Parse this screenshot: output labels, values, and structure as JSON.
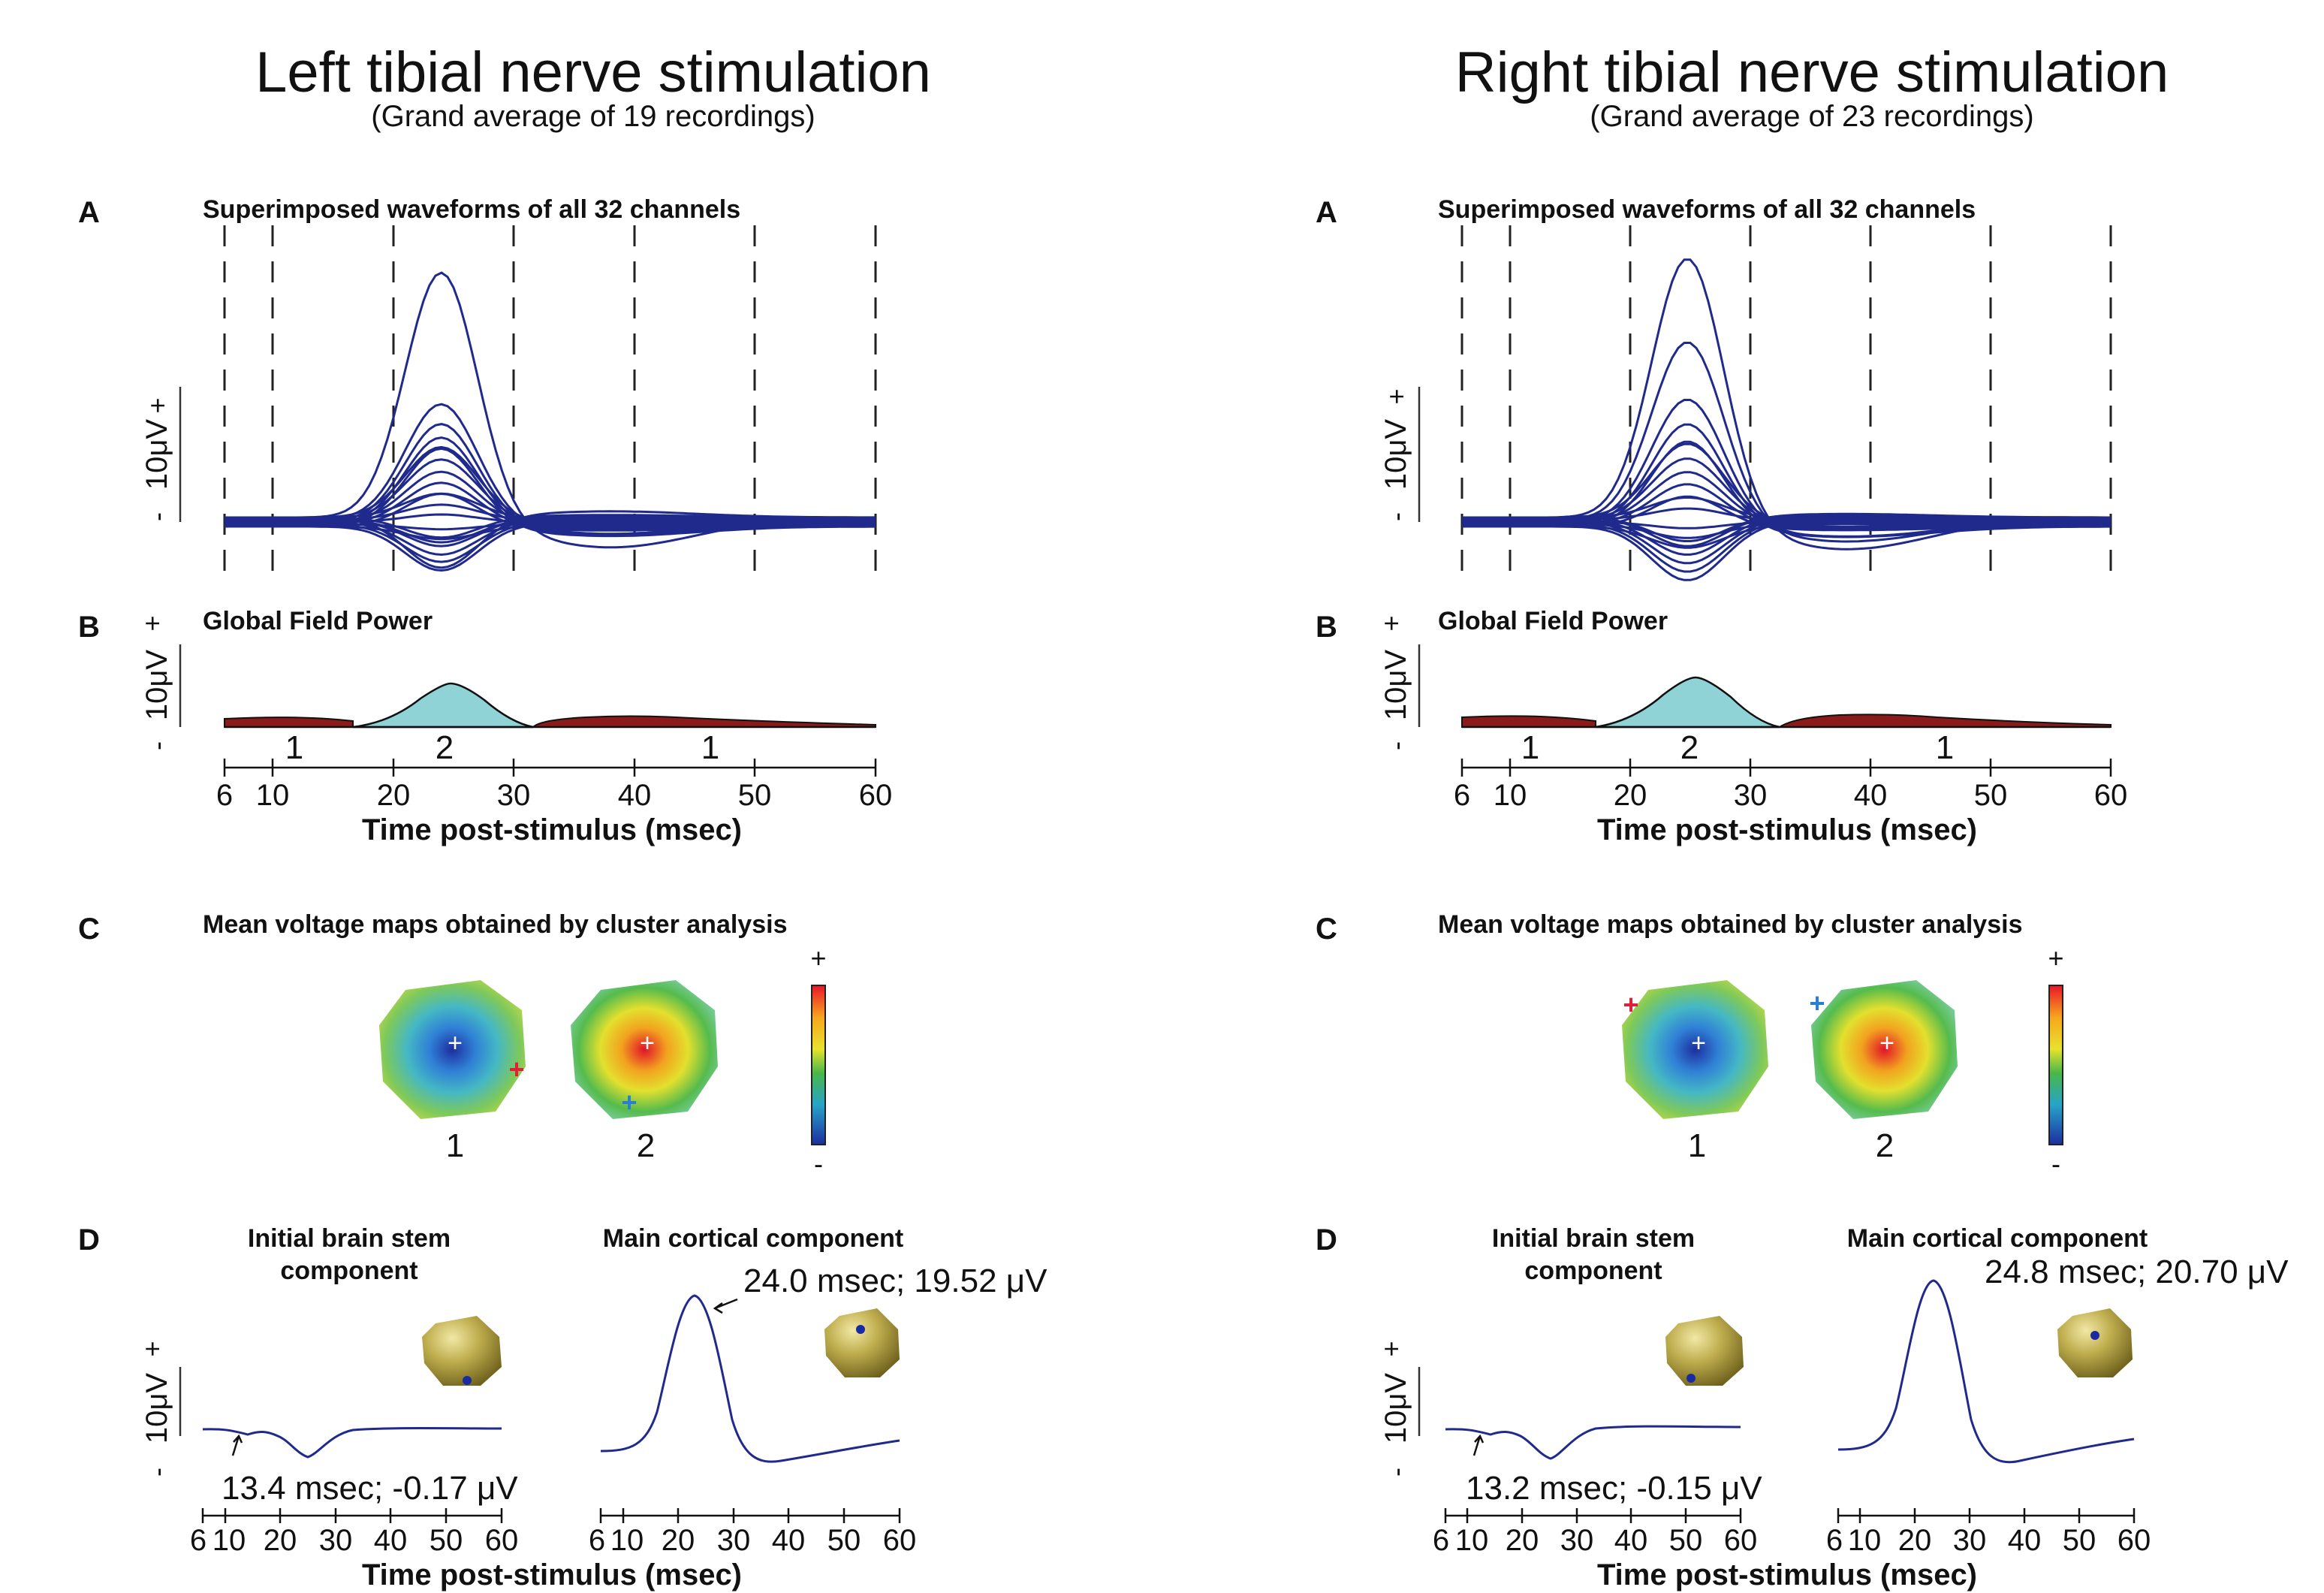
{
  "figure": {
    "panels": [
      {
        "title": "Left tibial nerve stimulation",
        "subtitle": "(Grand average of 19 recordings)",
        "letters": [
          "A",
          "B",
          "C",
          "D"
        ],
        "a_heading": "Superimposed waveforms of all 32 channels",
        "b_heading": "Global Field Power",
        "c_heading": "Mean voltage maps obtained by cluster analysis",
        "d_heading_left": [
          "Initial brain stem",
          "component"
        ],
        "d_heading_right": "Main cortical component",
        "scale_label": "10μV",
        "plus": "+",
        "minus": "-",
        "segments": [
          "1",
          "2",
          "1"
        ],
        "map_labels": [
          "1",
          "2"
        ],
        "colorbar_plus": "+",
        "colorbar_minus": "-",
        "x_ticks": [
          "6",
          "10",
          "20",
          "30",
          "40",
          "50",
          "60"
        ],
        "xlabel": "Time post-stimulus (msec)",
        "brainstem_annotation": "13.4 msec; -0.17 μV",
        "cortical_annotation": "24.0 msec; 19.52 μV"
      },
      {
        "title": "Right tibial nerve stimulation",
        "subtitle": "(Grand average of 23 recordings)",
        "letters": [
          "A",
          "B",
          "C",
          "D"
        ],
        "a_heading": "Superimposed waveforms of all 32 channels",
        "b_heading": "Global Field Power",
        "c_heading": "Mean voltage maps obtained by cluster analysis",
        "d_heading_left": [
          "Initial brain stem",
          "component"
        ],
        "d_heading_right": "Main cortical component",
        "scale_label": "10μV",
        "plus": "+",
        "minus": "-",
        "segments": [
          "1",
          "2",
          "1"
        ],
        "map_labels": [
          "1",
          "2"
        ],
        "colorbar_plus": "+",
        "colorbar_minus": "-",
        "x_ticks": [
          "6",
          "10",
          "20",
          "30",
          "40",
          "50",
          "60"
        ],
        "xlabel": "Time post-stimulus (msec)",
        "brainstem_annotation": "13.2 msec; -0.15 μV",
        "cortical_annotation": "24.8 msec; 20.70 μV"
      }
    ]
  },
  "colors": {
    "waveform": "#1f2a8c",
    "gfp_segment_2": "#8fd3d6",
    "gfp_segment_1": "#8b1a1a",
    "marker_red": "#e0203a",
    "marker_blue": "#2a7fd0",
    "electrode_dot": "#1a2aa0"
  },
  "chart_data": [
    {
      "type": "line",
      "title": "Superimposed waveforms of all 32 channels",
      "xlabel": "Time post-stimulus (msec)",
      "ylabel": "10μV",
      "xlim": [
        6,
        60
      ],
      "cluster_boundaries_ms": [
        6,
        10,
        20,
        30,
        40,
        50,
        60
      ],
      "x": [
        6,
        10,
        13.4,
        17,
        20,
        24,
        28,
        31,
        35,
        40,
        50,
        60
      ],
      "series": [
        {
          "values": [
            0,
            0,
            -0.2,
            0,
            10,
            19.5,
            9,
            0,
            -2,
            -2.5,
            -1.5,
            -0.5
          ]
        },
        {
          "values": [
            0,
            0,
            -0.2,
            0,
            5,
            9.2,
            4.5,
            0,
            -1,
            -0.6,
            -0.3,
            0
          ]
        },
        {
          "values": [
            0,
            0,
            0,
            0,
            -2,
            -4,
            -2,
            0,
            0.5,
            0.3,
            0.2,
            0
          ]
        }
      ]
    },
    {
      "type": "area",
      "title": "Global Field Power",
      "xlabel": "Time post-stimulus (msec)",
      "xlim": [
        6,
        60
      ],
      "segments": [
        {
          "label": "1",
          "start_ms": 6,
          "end_ms": 17
        },
        {
          "label": "2",
          "start_ms": 17,
          "end_ms": 31
        },
        {
          "label": "1",
          "start_ms": 31,
          "end_ms": 60
        }
      ]
    },
    {
      "type": "line",
      "title": "Initial brain stem component",
      "xlim": [
        6,
        60
      ],
      "peak": {
        "latency_ms": 13.4,
        "amplitude_uV": -0.17
      }
    },
    {
      "type": "line",
      "title": "Main cortical component",
      "xlim": [
        6,
        60
      ],
      "peak": {
        "latency_ms": 24.0,
        "amplitude_uV": 19.52
      }
    },
    {
      "type": "line",
      "title": "Superimposed waveforms of all 32 channels",
      "xlabel": "Time post-stimulus (msec)",
      "ylabel": "10μV",
      "xlim": [
        6,
        60
      ],
      "cluster_boundaries_ms": [
        6,
        10,
        20,
        30,
        40,
        50,
        60
      ],
      "x": [
        6,
        10,
        13.2,
        17,
        20,
        25,
        29,
        31,
        35,
        40,
        50,
        60
      ],
      "series": [
        {
          "values": [
            -1,
            -1,
            -1.2,
            0,
            11,
            20.7,
            10,
            0,
            -3,
            -3,
            -1.5,
            -0.5
          ]
        },
        {
          "values": [
            0,
            0,
            -0.2,
            0,
            7,
            14,
            7,
            0,
            -1,
            -0.8,
            -0.3,
            0
          ]
        },
        {
          "values": [
            0,
            0,
            0,
            0,
            -2,
            -4.5,
            -2,
            0,
            0.8,
            0.6,
            0.2,
            0
          ]
        }
      ]
    },
    {
      "type": "area",
      "title": "Global Field Power",
      "xlabel": "Time post-stimulus (msec)",
      "xlim": [
        6,
        60
      ],
      "segments": [
        {
          "label": "1",
          "start_ms": 6,
          "end_ms": 17
        },
        {
          "label": "2",
          "start_ms": 17,
          "end_ms": 31
        },
        {
          "label": "1",
          "start_ms": 31,
          "end_ms": 60
        }
      ]
    },
    {
      "type": "line",
      "title": "Initial brain stem component",
      "xlim": [
        6,
        60
      ],
      "peak": {
        "latency_ms": 13.2,
        "amplitude_uV": -0.15
      }
    },
    {
      "type": "line",
      "title": "Main cortical component",
      "xlim": [
        6,
        60
      ],
      "peak": {
        "latency_ms": 24.8,
        "amplitude_uV": 20.7
      }
    }
  ]
}
